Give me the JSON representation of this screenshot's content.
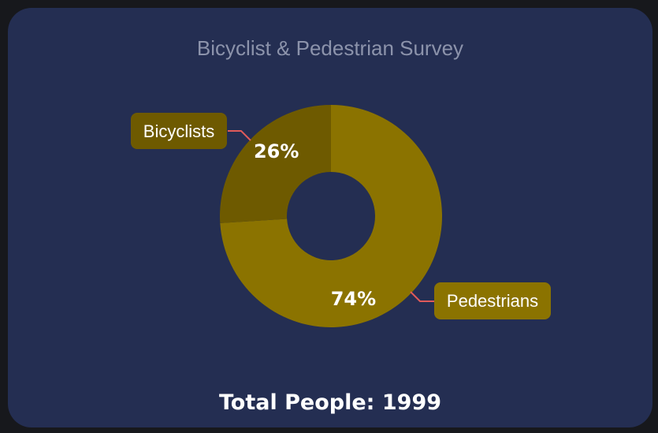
{
  "chart_data": {
    "type": "pie",
    "title": "Bicyclist & Pedestrian Survey",
    "donut": true,
    "slices": [
      {
        "name": "Bicyclists",
        "value": 26,
        "label": "26%",
        "color": "#6e5a00"
      },
      {
        "name": "Pedestrians",
        "value": 74,
        "label": "74%",
        "color": "#8b7300"
      }
    ],
    "footer": "Total People: 1999",
    "colors": {
      "card": "#242e52",
      "title": "#8c93ab",
      "connector": "#e05a5a",
      "text": "#ffffff"
    }
  }
}
